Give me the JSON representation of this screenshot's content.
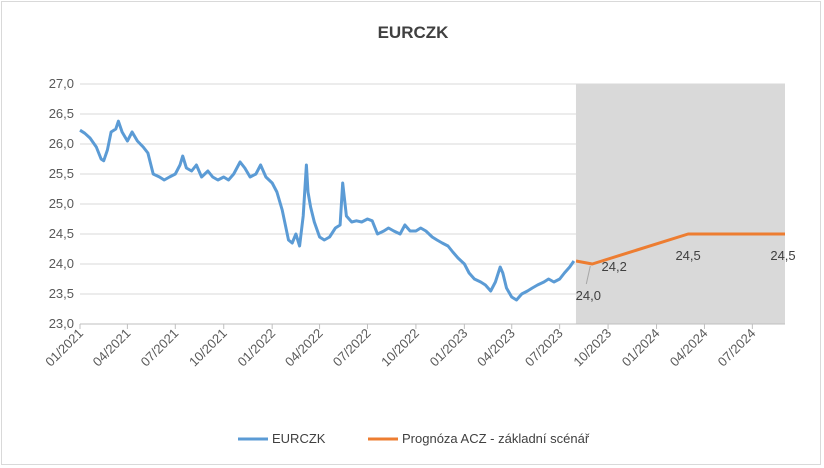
{
  "chart_data": {
    "type": "line",
    "title": "EURCZK",
    "xlabel": "",
    "ylabel": "",
    "ylim": [
      23.0,
      27.0
    ],
    "y_ticks": [
      "23,0",
      "23,5",
      "24,0",
      "24,5",
      "25,0",
      "25,5",
      "26,0",
      "26,5",
      "27,0"
    ],
    "x_range": [
      "2021-01-01",
      "2024-09-01"
    ],
    "x_ticks": [
      {
        "date": "2021-01-01",
        "label": "01/2021"
      },
      {
        "date": "2021-04-01",
        "label": "04/2021"
      },
      {
        "date": "2021-07-01",
        "label": "07/2021"
      },
      {
        "date": "2021-10-01",
        "label": "10/2021"
      },
      {
        "date": "2022-01-01",
        "label": "01/2022"
      },
      {
        "date": "2022-04-01",
        "label": "04/2022"
      },
      {
        "date": "2022-07-01",
        "label": "07/2022"
      },
      {
        "date": "2022-10-01",
        "label": "10/2022"
      },
      {
        "date": "2023-01-01",
        "label": "01/2023"
      },
      {
        "date": "2023-04-01",
        "label": "04/2023"
      },
      {
        "date": "2023-07-01",
        "label": "07/2023"
      },
      {
        "date": "2023-10-01",
        "label": "10/2023"
      },
      {
        "date": "2024-01-01",
        "label": "01/2024"
      },
      {
        "date": "2024-04-01",
        "label": "04/2024"
      },
      {
        "date": "2024-07-01",
        "label": "07/2024"
      }
    ],
    "shaded_region": {
      "from": "2023-08-01",
      "to": "2024-09-01",
      "color": "#d9d9d9"
    },
    "grid": true,
    "legend_position": "bottom",
    "series": [
      {
        "name": "EURCZK",
        "color": "#5b9bd5",
        "points": [
          [
            "2021-01-01",
            26.23
          ],
          [
            "2021-01-10",
            26.18
          ],
          [
            "2021-01-20",
            26.1
          ],
          [
            "2021-02-01",
            25.95
          ],
          [
            "2021-02-10",
            25.75
          ],
          [
            "2021-02-15",
            25.72
          ],
          [
            "2021-02-22",
            25.9
          ],
          [
            "2021-03-01",
            26.2
          ],
          [
            "2021-03-10",
            26.25
          ],
          [
            "2021-03-15",
            26.38
          ],
          [
            "2021-03-22",
            26.2
          ],
          [
            "2021-04-01",
            26.05
          ],
          [
            "2021-04-10",
            26.2
          ],
          [
            "2021-04-20",
            26.05
          ],
          [
            "2021-05-01",
            25.95
          ],
          [
            "2021-05-10",
            25.85
          ],
          [
            "2021-05-20",
            25.5
          ],
          [
            "2021-06-01",
            25.45
          ],
          [
            "2021-06-10",
            25.4
          ],
          [
            "2021-06-20",
            25.45
          ],
          [
            "2021-07-01",
            25.5
          ],
          [
            "2021-07-10",
            25.65
          ],
          [
            "2021-07-15",
            25.8
          ],
          [
            "2021-07-22",
            25.6
          ],
          [
            "2021-08-01",
            25.55
          ],
          [
            "2021-08-10",
            25.65
          ],
          [
            "2021-08-20",
            25.45
          ],
          [
            "2021-09-01",
            25.55
          ],
          [
            "2021-09-10",
            25.45
          ],
          [
            "2021-09-20",
            25.4
          ],
          [
            "2021-10-01",
            25.45
          ],
          [
            "2021-10-10",
            25.4
          ],
          [
            "2021-10-20",
            25.5
          ],
          [
            "2021-11-01",
            25.7
          ],
          [
            "2021-11-10",
            25.6
          ],
          [
            "2021-11-20",
            25.45
          ],
          [
            "2021-12-01",
            25.5
          ],
          [
            "2021-12-10",
            25.65
          ],
          [
            "2021-12-20",
            25.45
          ],
          [
            "2022-01-01",
            25.35
          ],
          [
            "2022-01-10",
            25.2
          ],
          [
            "2022-01-20",
            24.9
          ],
          [
            "2022-02-01",
            24.4
          ],
          [
            "2022-02-08",
            24.35
          ],
          [
            "2022-02-15",
            24.5
          ],
          [
            "2022-02-22",
            24.3
          ],
          [
            "2022-03-01",
            24.8
          ],
          [
            "2022-03-07",
            25.65
          ],
          [
            "2022-03-10",
            25.2
          ],
          [
            "2022-03-15",
            24.95
          ],
          [
            "2022-03-22",
            24.7
          ],
          [
            "2022-04-01",
            24.45
          ],
          [
            "2022-04-10",
            24.4
          ],
          [
            "2022-04-20",
            24.45
          ],
          [
            "2022-05-01",
            24.6
          ],
          [
            "2022-05-10",
            24.65
          ],
          [
            "2022-05-15",
            25.35
          ],
          [
            "2022-05-22",
            24.8
          ],
          [
            "2022-06-01",
            24.7
          ],
          [
            "2022-06-10",
            24.72
          ],
          [
            "2022-06-20",
            24.7
          ],
          [
            "2022-07-01",
            24.75
          ],
          [
            "2022-07-10",
            24.72
          ],
          [
            "2022-07-20",
            24.5
          ],
          [
            "2022-08-01",
            24.55
          ],
          [
            "2022-08-10",
            24.6
          ],
          [
            "2022-08-20",
            24.55
          ],
          [
            "2022-09-01",
            24.5
          ],
          [
            "2022-09-10",
            24.65
          ],
          [
            "2022-09-20",
            24.55
          ],
          [
            "2022-10-01",
            24.55
          ],
          [
            "2022-10-10",
            24.6
          ],
          [
            "2022-10-20",
            24.55
          ],
          [
            "2022-11-01",
            24.45
          ],
          [
            "2022-11-10",
            24.4
          ],
          [
            "2022-11-20",
            24.35
          ],
          [
            "2022-12-01",
            24.3
          ],
          [
            "2022-12-10",
            24.2
          ],
          [
            "2022-12-20",
            24.1
          ],
          [
            "2023-01-01",
            24.0
          ],
          [
            "2023-01-10",
            23.85
          ],
          [
            "2023-01-20",
            23.75
          ],
          [
            "2023-02-01",
            23.7
          ],
          [
            "2023-02-10",
            23.65
          ],
          [
            "2023-02-20",
            23.55
          ],
          [
            "2023-03-01",
            23.7
          ],
          [
            "2023-03-10",
            23.95
          ],
          [
            "2023-03-15",
            23.85
          ],
          [
            "2023-03-22",
            23.6
          ],
          [
            "2023-04-01",
            23.45
          ],
          [
            "2023-04-10",
            23.4
          ],
          [
            "2023-04-20",
            23.5
          ],
          [
            "2023-05-01",
            23.55
          ],
          [
            "2023-05-10",
            23.6
          ],
          [
            "2023-05-20",
            23.65
          ],
          [
            "2023-06-01",
            23.7
          ],
          [
            "2023-06-10",
            23.75
          ],
          [
            "2023-06-20",
            23.7
          ],
          [
            "2023-07-01",
            23.75
          ],
          [
            "2023-07-10",
            23.85
          ],
          [
            "2023-07-20",
            23.95
          ],
          [
            "2023-07-28",
            24.05
          ]
        ]
      },
      {
        "name": "Prognóza ACZ - základní scénář",
        "color": "#ed7d31",
        "points": [
          [
            "2023-08-01",
            24.05
          ],
          [
            "2023-09-01",
            24.0
          ],
          [
            "2024-03-01",
            24.5
          ],
          [
            "2024-09-01",
            24.5
          ]
        ]
      }
    ],
    "annotations": [
      {
        "text": "24,0",
        "date": "2023-09-01",
        "value": 24.0
      },
      {
        "text": "24,2",
        "date": "2023-12-01",
        "value": 24.25
      },
      {
        "text": "24,5",
        "date": "2024-03-01",
        "value": 24.5
      },
      {
        "text": "24,5",
        "date": "2024-09-01",
        "value": 24.5
      }
    ]
  }
}
